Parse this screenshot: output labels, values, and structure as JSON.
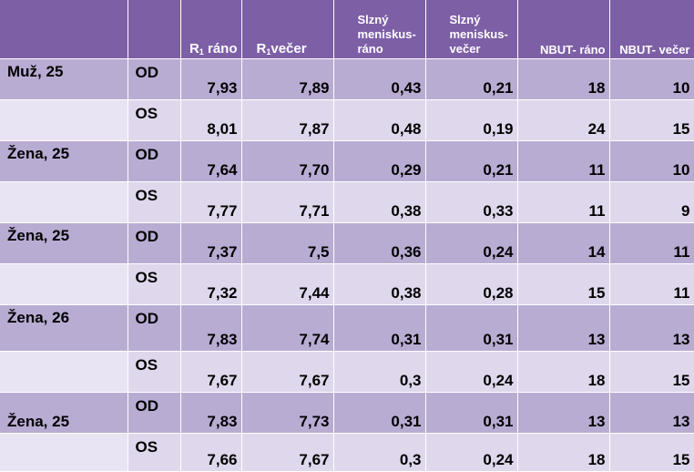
{
  "headers": {
    "col_name": "",
    "col_eye": "",
    "r_morning": "R",
    "r_morning_sub": "1",
    "r_morning_suffix": " ráno",
    "r_evening": "R",
    "r_evening_sub": "1",
    "r_evening_suffix": "večer",
    "meniscus_morning": "Slzný meniskus-ráno",
    "meniscus_evening": "Slzný meniskus-večer",
    "nbut_morning": "NBUT- ráno",
    "nbut_evening": "NBUT- večer"
  },
  "rows": [
    {
      "subject": "Muž, 25",
      "eye": "OD",
      "r_morning": "7,93",
      "r_evening": "7,89",
      "men_morning": "0,43",
      "men_evening": "0,21",
      "nbut_morning": "18",
      "nbut_evening": "10"
    },
    {
      "subject": "",
      "eye": "OS",
      "r_morning": "8,01",
      "r_evening": "7,87",
      "men_morning": "0,48",
      "men_evening": "0,19",
      "nbut_morning": "24",
      "nbut_evening": "15"
    },
    {
      "subject": "Žena, 25",
      "eye": "OD",
      "r_morning": "7,64",
      "r_evening": "7,70",
      "men_morning": "0,29",
      "men_evening": "0,21",
      "nbut_morning": "11",
      "nbut_evening": "10"
    },
    {
      "subject": "",
      "eye": "OS",
      "r_morning": "7,77",
      "r_evening": "7,71",
      "men_morning": "0,38",
      "men_evening": "0,33",
      "nbut_morning": "11",
      "nbut_evening": "9"
    },
    {
      "subject": "Žena, 25",
      "eye": "OD",
      "r_morning": "7,37",
      "r_evening": "7,5",
      "men_morning": "0,36",
      "men_evening": "0,24",
      "nbut_morning": "14",
      "nbut_evening": "11"
    },
    {
      "subject": "",
      "eye": "OS",
      "r_morning": "7,32",
      "r_evening": "7,44",
      "men_morning": "0,38",
      "men_evening": "0,28",
      "nbut_morning": "15",
      "nbut_evening": "11"
    },
    {
      "subject": "Žena, 26",
      "eye": "OD",
      "r_morning": "7,83",
      "r_evening": "7,74",
      "men_morning": "0,31",
      "men_evening": "0,31",
      "nbut_morning": "13",
      "nbut_evening": "13"
    },
    {
      "subject": "",
      "eye": "OS",
      "r_morning": "7,67",
      "r_evening": "7,67",
      "men_morning": "0,3",
      "men_evening": "0,24",
      "nbut_morning": "18",
      "nbut_evening": "15"
    },
    {
      "subject": "Žena, 25",
      "eye": "OD",
      "r_morning": "7,83",
      "r_evening": "7,73",
      "men_morning": "0,31",
      "men_evening": "0,31",
      "nbut_morning": "13",
      "nbut_evening": "13"
    },
    {
      "subject": "",
      "eye": "OS",
      "r_morning": "7,66",
      "r_evening": "7,67",
      "men_morning": "0,3",
      "men_evening": "0,24",
      "nbut_morning": "18",
      "nbut_evening": "15"
    }
  ]
}
